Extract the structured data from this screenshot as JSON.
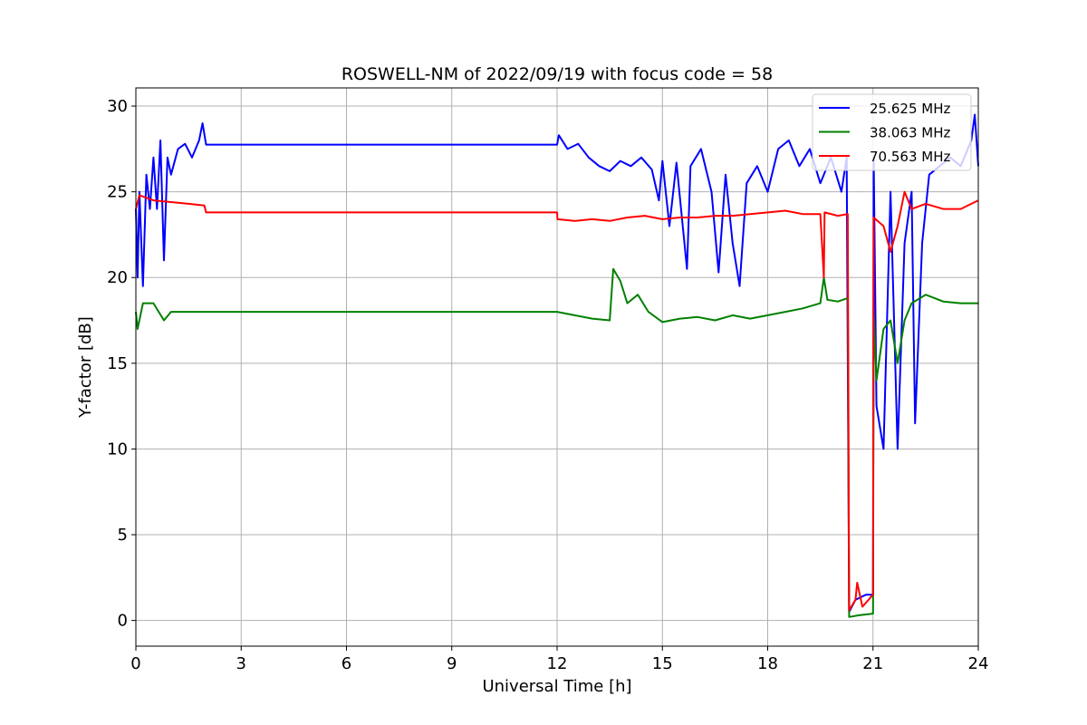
{
  "chart_data": {
    "type": "line",
    "title": "ROSWELL-NM of 2022/09/19 with focus code = 58",
    "xlabel": "Universal Time [h]",
    "ylabel": "Y-factor [dB]",
    "xlim": [
      0,
      24
    ],
    "ylim": [
      -1.5,
      31.06
    ],
    "xticks": [
      "0",
      "3",
      "6",
      "9",
      "12",
      "15",
      "18",
      "21",
      "24"
    ],
    "yticks": [
      "0",
      "5",
      "10",
      "15",
      "20",
      "25",
      "30"
    ],
    "grid": true,
    "legend_position": "top-right",
    "series": [
      {
        "name": "25.625 MHz",
        "color": "#0000ff",
        "points": [
          [
            0,
            24
          ],
          [
            0.05,
            20
          ],
          [
            0.1,
            25
          ],
          [
            0.2,
            19.5
          ],
          [
            0.3,
            26
          ],
          [
            0.4,
            24
          ],
          [
            0.5,
            27
          ],
          [
            0.6,
            24
          ],
          [
            0.7,
            28
          ],
          [
            0.8,
            21
          ],
          [
            0.9,
            27
          ],
          [
            1.0,
            26
          ],
          [
            1.2,
            27.5
          ],
          [
            1.4,
            27.8
          ],
          [
            1.6,
            27
          ],
          [
            1.8,
            28
          ],
          [
            1.9,
            29
          ],
          [
            2,
            27.75
          ],
          [
            12,
            27.75
          ],
          [
            12.05,
            28.3
          ],
          [
            12.3,
            27.5
          ],
          [
            12.6,
            27.8
          ],
          [
            12.9,
            27
          ],
          [
            13.2,
            26.5
          ],
          [
            13.5,
            26.2
          ],
          [
            13.8,
            26.8
          ],
          [
            14.1,
            26.5
          ],
          [
            14.4,
            27
          ],
          [
            14.7,
            26.3
          ],
          [
            14.9,
            24.5
          ],
          [
            15.0,
            26.8
          ],
          [
            15.2,
            23
          ],
          [
            15.4,
            26.7
          ],
          [
            15.7,
            20.5
          ],
          [
            15.8,
            26.5
          ],
          [
            16.1,
            27.5
          ],
          [
            16.4,
            25
          ],
          [
            16.6,
            20.3
          ],
          [
            16.8,
            26
          ],
          [
            17.0,
            22
          ],
          [
            17.2,
            19.5
          ],
          [
            17.4,
            25.5
          ],
          [
            17.7,
            26.5
          ],
          [
            18.0,
            25
          ],
          [
            18.3,
            27.5
          ],
          [
            18.6,
            28
          ],
          [
            18.9,
            26.5
          ],
          [
            19.2,
            27.5
          ],
          [
            19.5,
            25.5
          ],
          [
            19.8,
            27
          ],
          [
            20.1,
            25
          ],
          [
            20.25,
            27
          ],
          [
            20.32,
            0.5
          ],
          [
            20.5,
            1.2
          ],
          [
            20.8,
            1.5
          ],
          [
            21.0,
            1.5
          ],
          [
            21.02,
            27
          ],
          [
            21.1,
            12.5
          ],
          [
            21.3,
            10
          ],
          [
            21.5,
            25
          ],
          [
            21.7,
            10
          ],
          [
            21.9,
            22
          ],
          [
            22.1,
            25
          ],
          [
            22.2,
            11.5
          ],
          [
            22.4,
            22
          ],
          [
            22.6,
            26
          ],
          [
            22.9,
            26.5
          ],
          [
            23.2,
            27
          ],
          [
            23.5,
            26.5
          ],
          [
            23.8,
            28
          ],
          [
            23.9,
            29.5
          ],
          [
            24,
            26.5
          ]
        ]
      },
      {
        "name": "38.063 MHz",
        "color": "#008000",
        "points": [
          [
            0,
            18
          ],
          [
            0.05,
            17
          ],
          [
            0.2,
            18.5
          ],
          [
            0.5,
            18.5
          ],
          [
            0.8,
            17.5
          ],
          [
            1.0,
            18
          ],
          [
            1.5,
            18
          ],
          [
            2,
            18
          ],
          [
            12,
            18
          ],
          [
            12.5,
            17.8
          ],
          [
            13,
            17.6
          ],
          [
            13.5,
            17.5
          ],
          [
            13.6,
            20.5
          ],
          [
            13.8,
            19.8
          ],
          [
            14,
            18.5
          ],
          [
            14.3,
            19
          ],
          [
            14.6,
            18
          ],
          [
            15,
            17.4
          ],
          [
            15.5,
            17.6
          ],
          [
            16,
            17.7
          ],
          [
            16.5,
            17.5
          ],
          [
            17,
            17.8
          ],
          [
            17.5,
            17.6
          ],
          [
            18,
            17.8
          ],
          [
            18.5,
            18
          ],
          [
            19,
            18.2
          ],
          [
            19.5,
            18.5
          ],
          [
            19.6,
            20
          ],
          [
            19.7,
            18.7
          ],
          [
            20,
            18.6
          ],
          [
            20.28,
            18.8
          ],
          [
            20.32,
            0.2
          ],
          [
            20.6,
            0.3
          ],
          [
            21,
            0.4
          ],
          [
            21.02,
            18
          ],
          [
            21.1,
            14
          ],
          [
            21.3,
            17
          ],
          [
            21.5,
            17.5
          ],
          [
            21.7,
            15
          ],
          [
            21.9,
            17.5
          ],
          [
            22.1,
            18.5
          ],
          [
            22.5,
            19
          ],
          [
            23,
            18.6
          ],
          [
            23.5,
            18.5
          ],
          [
            24,
            18.5
          ]
        ]
      },
      {
        "name": "70.563 MHz",
        "color": "#ff0000",
        "points": [
          [
            0,
            24
          ],
          [
            0.1,
            24.8
          ],
          [
            0.5,
            24.5
          ],
          [
            1.0,
            24.4
          ],
          [
            1.5,
            24.3
          ],
          [
            1.95,
            24.2
          ],
          [
            2,
            23.8
          ],
          [
            12,
            23.8
          ],
          [
            12.01,
            23.4
          ],
          [
            12.5,
            23.3
          ],
          [
            13,
            23.4
          ],
          [
            13.5,
            23.3
          ],
          [
            14,
            23.5
          ],
          [
            14.5,
            23.6
          ],
          [
            15,
            23.4
          ],
          [
            15.5,
            23.5
          ],
          [
            16,
            23.5
          ],
          [
            16.5,
            23.6
          ],
          [
            17,
            23.6
          ],
          [
            17.5,
            23.7
          ],
          [
            18,
            23.8
          ],
          [
            18.5,
            23.9
          ],
          [
            19,
            23.7
          ],
          [
            19.5,
            23.7
          ],
          [
            19.6,
            20
          ],
          [
            19.62,
            23.8
          ],
          [
            20,
            23.6
          ],
          [
            20.28,
            23.7
          ],
          [
            20.32,
            0.6
          ],
          [
            20.5,
            1.2
          ],
          [
            20.55,
            2.2
          ],
          [
            20.7,
            0.8
          ],
          [
            21.0,
            1.5
          ],
          [
            21.02,
            23.5
          ],
          [
            21.3,
            23
          ],
          [
            21.5,
            21.5
          ],
          [
            21.7,
            23
          ],
          [
            21.9,
            25
          ],
          [
            22.1,
            24
          ],
          [
            22.5,
            24.3
          ],
          [
            23,
            24
          ],
          [
            23.5,
            24
          ],
          [
            24,
            24.5
          ]
        ]
      }
    ]
  }
}
